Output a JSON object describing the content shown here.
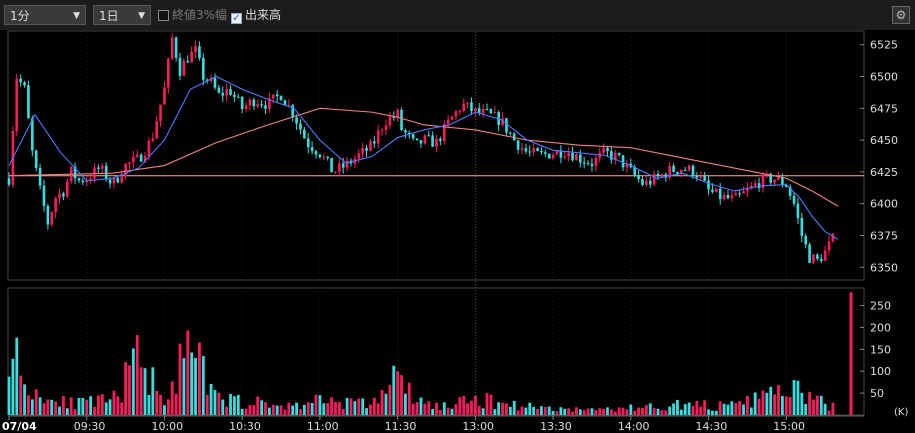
{
  "toolbar": {
    "interval": "1分",
    "period": "1日",
    "option1_label": "終値3%幅",
    "option1_checked": false,
    "option2_label": "出来高",
    "option2_checked": true
  },
  "colors": {
    "up": "#ff1a5c",
    "down": "#33e0e0",
    "ma_short": "#4d7cff",
    "ma_long": "#f08080",
    "ref_line": "#ffb0a0"
  },
  "chart_data": [
    {
      "type": "candlestick",
      "date_label": "07/04",
      "x_tick_labels": [
        "07/04",
        "09:30",
        "10:00",
        "10:30",
        "11:00",
        "11:30",
        "13:00",
        "13:30",
        "14:00",
        "14:30",
        "15:00"
      ],
      "y_tick_labels": [
        "6525",
        "6500",
        "6475",
        "6450",
        "6425",
        "6400",
        "6375",
        "6350"
      ],
      "ylim": [
        6340,
        6535
      ],
      "reference_line": 6422,
      "price_path": [
        [
          "09:00",
          6420
        ],
        [
          "09:03",
          6500
        ],
        [
          "09:06",
          6490
        ],
        [
          "09:09",
          6440
        ],
        [
          "09:12",
          6410
        ],
        [
          "09:15",
          6385
        ],
        [
          "09:18",
          6405
        ],
        [
          "09:21",
          6410
        ],
        [
          "09:24",
          6425
        ],
        [
          "09:27",
          6418
        ],
        [
          "09:30",
          6420
        ],
        [
          "09:35",
          6428
        ],
        [
          "09:40",
          6415
        ],
        [
          "09:45",
          6430
        ],
        [
          "09:50",
          6435
        ],
        [
          "09:55",
          6450
        ],
        [
          "10:00",
          6490
        ],
        [
          "10:03",
          6530
        ],
        [
          "10:06",
          6505
        ],
        [
          "10:09",
          6515
        ],
        [
          "10:12",
          6520
        ],
        [
          "10:15",
          6500
        ],
        [
          "10:18",
          6495
        ],
        [
          "10:21",
          6485
        ],
        [
          "10:25",
          6490
        ],
        [
          "10:30",
          6475
        ],
        [
          "10:35",
          6482
        ],
        [
          "10:40",
          6478
        ],
        [
          "10:45",
          6486
        ],
        [
          "10:50",
          6470
        ],
        [
          "10:55",
          6448
        ],
        [
          "11:00",
          6440
        ],
        [
          "11:05",
          6425
        ],
        [
          "11:10",
          6430
        ],
        [
          "11:15",
          6438
        ],
        [
          "11:20",
          6445
        ],
        [
          "11:25",
          6465
        ],
        [
          "11:30",
          6470
        ],
        [
          "12:30",
          6462
        ],
        [
          "12:33",
          6455
        ],
        [
          "12:37",
          6445
        ],
        [
          "12:40",
          6450
        ],
        [
          "12:45",
          6448
        ],
        [
          "12:50",
          6465
        ],
        [
          "12:55",
          6478
        ],
        [
          "13:00",
          6472
        ],
        [
          "13:05",
          6470
        ],
        [
          "13:10",
          6465
        ],
        [
          "13:15",
          6450
        ],
        [
          "13:20",
          6440
        ],
        [
          "13:25",
          6438
        ],
        [
          "13:30",
          6440
        ],
        [
          "13:35",
          6442
        ],
        [
          "13:40",
          6436
        ],
        [
          "13:45",
          6432
        ],
        [
          "13:50",
          6440
        ],
        [
          "13:55",
          6436
        ],
        [
          "14:00",
          6425
        ],
        [
          "14:05",
          6415
        ],
        [
          "14:10",
          6420
        ],
        [
          "14:15",
          6426
        ],
        [
          "14:20",
          6428
        ],
        [
          "14:25",
          6425
        ],
        [
          "14:30",
          6410
        ],
        [
          "14:35",
          6405
        ],
        [
          "14:40",
          6403
        ],
        [
          "14:45",
          6410
        ],
        [
          "14:50",
          6418
        ],
        [
          "14:55",
          6420
        ],
        [
          "15:00",
          6415
        ],
        [
          "15:03",
          6400
        ],
        [
          "15:06",
          6375
        ],
        [
          "15:09",
          6358
        ],
        [
          "15:12",
          6355
        ],
        [
          "15:15",
          6362
        ],
        [
          "15:18",
          6372
        ]
      ],
      "ma_short_path": [
        [
          "09:00",
          6430
        ],
        [
          "09:10",
          6470
        ],
        [
          "09:20",
          6440
        ],
        [
          "09:30",
          6418
        ],
        [
          "09:40",
          6420
        ],
        [
          "09:50",
          6428
        ],
        [
          "10:00",
          6450
        ],
        [
          "10:10",
          6490
        ],
        [
          "10:20",
          6500
        ],
        [
          "10:30",
          6490
        ],
        [
          "10:40",
          6482
        ],
        [
          "10:50",
          6475
        ],
        [
          "11:00",
          6450
        ],
        [
          "11:10",
          6432
        ],
        [
          "11:20",
          6437
        ],
        [
          "11:30",
          6452
        ],
        [
          "12:40",
          6458
        ],
        [
          "12:50",
          6462
        ],
        [
          "13:00",
          6472
        ],
        [
          "13:10",
          6466
        ],
        [
          "13:20",
          6450
        ],
        [
          "13:30",
          6442
        ],
        [
          "13:40",
          6440
        ],
        [
          "13:50",
          6438
        ],
        [
          "14:00",
          6430
        ],
        [
          "14:10",
          6420
        ],
        [
          "14:20",
          6424
        ],
        [
          "14:30",
          6416
        ],
        [
          "14:40",
          6410
        ],
        [
          "14:50",
          6414
        ],
        [
          "15:00",
          6415
        ],
        [
          "15:05",
          6405
        ],
        [
          "15:10",
          6390
        ],
        [
          "15:15",
          6378
        ],
        [
          "15:20",
          6372
        ]
      ],
      "ma_long_path": [
        [
          "09:00",
          6422
        ],
        [
          "09:20",
          6423
        ],
        [
          "09:40",
          6424
        ],
        [
          "10:00",
          6430
        ],
        [
          "10:20",
          6448
        ],
        [
          "10:40",
          6462
        ],
        [
          "11:00",
          6475
        ],
        [
          "11:20",
          6472
        ],
        [
          "11:30",
          6468
        ],
        [
          "12:40",
          6462
        ],
        [
          "13:00",
          6458
        ],
        [
          "13:20",
          6450
        ],
        [
          "13:40",
          6446
        ],
        [
          "14:00",
          6444
        ],
        [
          "14:20",
          6436
        ],
        [
          "14:40",
          6428
        ],
        [
          "15:00",
          6420
        ],
        [
          "15:10",
          6410
        ],
        [
          "15:20",
          6398
        ]
      ],
      "ylabel": ""
    },
    {
      "type": "bar",
      "unit_label": "(K)",
      "y_tick_labels": [
        "250",
        "200",
        "150",
        "100",
        "50"
      ],
      "ylim": [
        0,
        290
      ],
      "volume_path": [
        [
          "09:00",
          250
        ],
        [
          "09:05",
          95
        ],
        [
          "09:10",
          70
        ],
        [
          "09:15",
          40
        ],
        [
          "09:20",
          55
        ],
        [
          "09:25",
          30
        ],
        [
          "09:30",
          35
        ],
        [
          "09:40",
          40
        ],
        [
          "09:50",
          160
        ],
        [
          "10:00",
          50
        ],
        [
          "10:10",
          185
        ],
        [
          "10:20",
          45
        ],
        [
          "10:30",
          40
        ],
        [
          "10:40",
          30
        ],
        [
          "10:50",
          25
        ],
        [
          "11:00",
          45
        ],
        [
          "11:20",
          30
        ],
        [
          "11:30",
          115
        ],
        [
          "12:30",
          90
        ],
        [
          "12:40",
          30
        ],
        [
          "12:50",
          25
        ],
        [
          "13:00",
          45
        ],
        [
          "13:20",
          25
        ],
        [
          "13:40",
          15
        ],
        [
          "14:00",
          20
        ],
        [
          "14:20",
          30
        ],
        [
          "14:40",
          25
        ],
        [
          "15:00",
          75
        ],
        [
          "15:10",
          50
        ],
        [
          "15:15",
          30
        ],
        [
          "15:20",
          20
        ],
        [
          "15:25",
          280
        ]
      ]
    }
  ]
}
